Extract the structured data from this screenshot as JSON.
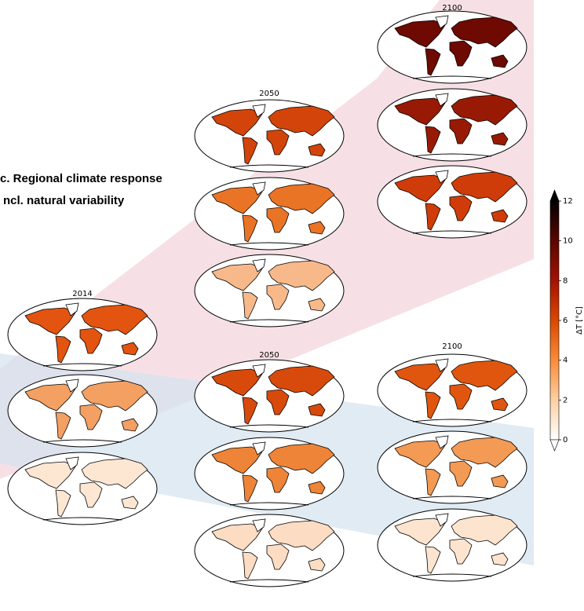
{
  "chart_data": {
    "type": "colorbar",
    "title_lines": [
      "c. Regional climate response",
      "ncl. natural variability"
    ],
    "panel_titles": [
      "2014",
      "2050",
      "2100",
      "2050",
      "2100"
    ],
    "colorbar_label": "ΔT [°C]",
    "clim": [
      0,
      12
    ],
    "ticks": [
      0,
      2,
      4,
      6,
      8,
      10,
      12
    ],
    "colormap": [
      "#ffffff",
      "#fdd0a2",
      "#f98c3a",
      "#d94801",
      "#a31203",
      "#5a0600",
      "#000000"
    ]
  }
}
